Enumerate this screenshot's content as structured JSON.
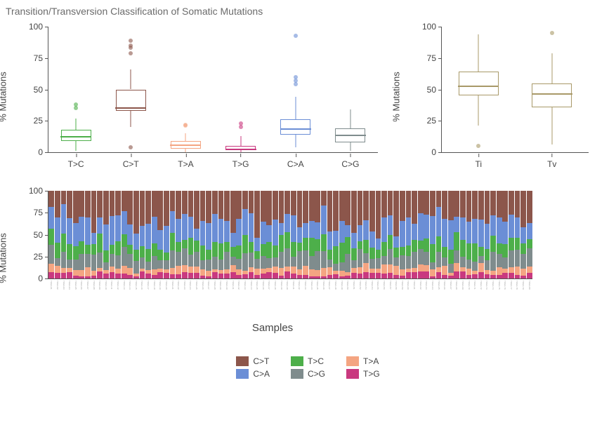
{
  "title": "Transition/Transversion Classification of Somatic Mutations",
  "ylabel": "% Mutations",
  "bottom_xlabel": "Samples",
  "colors": {
    "T>C": "#4daf4a",
    "C>T": "#8c564b",
    "T>A": "#f4a582",
    "T>G": "#c9397f",
    "C>A": "#6b8ed6",
    "C>G": "#7f8c8d",
    "Ti": "#a89968",
    "Tv": "#a89968"
  },
  "box_left": {
    "ylim": [
      0,
      100
    ],
    "yticks": [
      0,
      25,
      50,
      75,
      100
    ],
    "categories": [
      "T>C",
      "C>T",
      "T>A",
      "T>G",
      "C>A",
      "C>G"
    ],
    "boxes": {
      "T>C": {
        "q1": 9,
        "median": 13,
        "q3": 18,
        "low": 1,
        "high": 27,
        "outliers": [
          35,
          38
        ]
      },
      "C>T": {
        "q1": 33,
        "median": 36,
        "q3": 50,
        "low": 20,
        "high": 66,
        "outliers": [
          4,
          79,
          83,
          85,
          89
        ]
      },
      "T>A": {
        "q1": 3,
        "median": 6,
        "q3": 9,
        "low": 0,
        "high": 15,
        "outliers": [
          21,
          22
        ]
      },
      "T>G": {
        "q1": 2,
        "median": 3,
        "q3": 5,
        "low": 0,
        "high": 13,
        "outliers": [
          20,
          23
        ]
      },
      "C>A": {
        "q1": 14,
        "median": 19,
        "q3": 26,
        "low": 4,
        "high": 44,
        "outliers": [
          54,
          57,
          60,
          93
        ]
      },
      "C>G": {
        "q1": 8,
        "median": 14,
        "q3": 19,
        "low": 1,
        "high": 34,
        "outliers": []
      }
    }
  },
  "box_right": {
    "ylim": [
      0,
      100
    ],
    "yticks": [
      0,
      25,
      50,
      75,
      100
    ],
    "categories": [
      "Ti",
      "Tv"
    ],
    "boxes": {
      "Ti": {
        "q1": 45,
        "median": 53,
        "q3": 64,
        "low": 21,
        "high": 94,
        "outliers": [
          5
        ]
      },
      "Tv": {
        "q1": 36,
        "median": 47,
        "q3": 55,
        "low": 6,
        "high": 79,
        "outliers": [
          95
        ]
      }
    }
  },
  "stacked": {
    "ylim": [
      0,
      100
    ],
    "yticks": [
      0,
      25,
      50,
      75,
      100
    ],
    "order": [
      "T>G",
      "T>A",
      "C>G",
      "T>C",
      "C>A",
      "C>T"
    ],
    "n_samples": 80,
    "sample_prefix": "TCGA-"
  },
  "legend": [
    [
      "C>T",
      "T>C",
      "T>A"
    ],
    [
      "C>A",
      "C>G",
      "T>G"
    ]
  ]
}
